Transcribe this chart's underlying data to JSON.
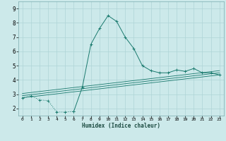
{
  "xlabel": "Humidex (Indice chaleur)",
  "background_color": "#cce9ea",
  "grid_color": "#aed4d6",
  "line_color": "#1a7a6e",
  "x_ticks": [
    0,
    1,
    2,
    3,
    4,
    5,
    6,
    7,
    8,
    9,
    10,
    11,
    12,
    13,
    14,
    15,
    16,
    17,
    18,
    19,
    20,
    21,
    22,
    23
  ],
  "y_ticks": [
    2,
    3,
    4,
    5,
    6,
    7,
    8,
    9
  ],
  "xlim": [
    -0.5,
    23.5
  ],
  "ylim": [
    1.5,
    9.5
  ],
  "series1_x": [
    0,
    1,
    2,
    3,
    4,
    5,
    6,
    7,
    8,
    9,
    10,
    11,
    12,
    13,
    14,
    15,
    16,
    17,
    18,
    19,
    20,
    21,
    22,
    23
  ],
  "series1_y": [
    2.75,
    2.9,
    2.6,
    2.55,
    1.75,
    1.75,
    1.8,
    3.5,
    6.5,
    7.6,
    8.5,
    8.1,
    7.0,
    6.2,
    5.0,
    4.65,
    4.5,
    4.5,
    4.7,
    4.6,
    4.8,
    4.5,
    4.5,
    4.35
  ],
  "series2_x": [
    0,
    23
  ],
  "series2_y": [
    2.75,
    4.35
  ],
  "series3_x": [
    0,
    23
  ],
  "series3_y": [
    2.9,
    4.5
  ],
  "series4_x": [
    0,
    23
  ],
  "series4_y": [
    3.05,
    4.65
  ]
}
